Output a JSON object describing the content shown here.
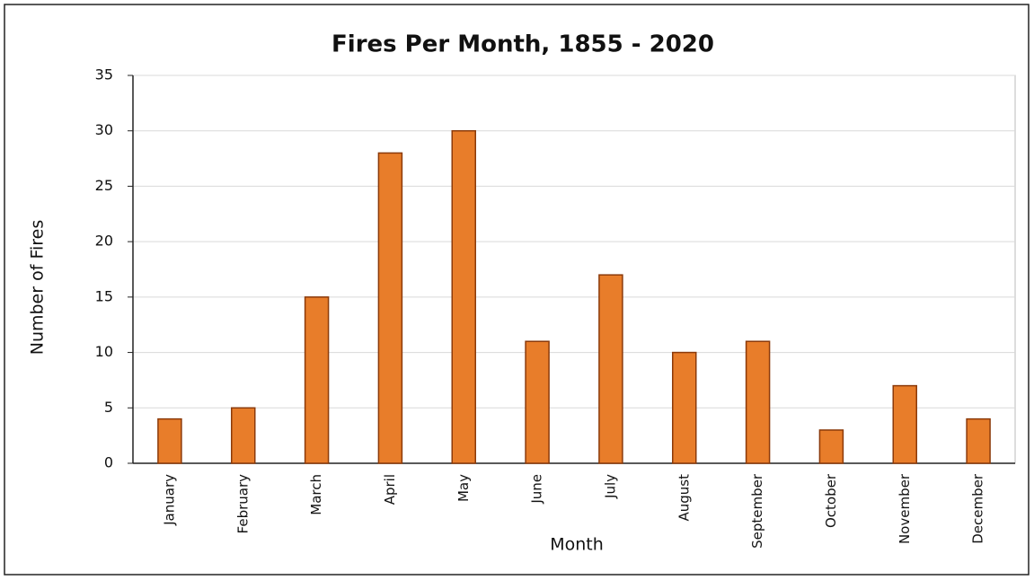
{
  "chart_data": {
    "type": "bar",
    "title": "Fires Per Month, 1855 - 2020",
    "x_label": "Month",
    "y_label": "Number of Fires",
    "categories": [
      "January",
      "February",
      "March",
      "April",
      "May",
      "June",
      "July",
      "August",
      "September",
      "October",
      "November",
      "December"
    ],
    "values": [
      4,
      5,
      15,
      28,
      30,
      11,
      17,
      10,
      11,
      3,
      7,
      4
    ],
    "color": "#e87d2a",
    "ylim": [
      0,
      35
    ],
    "yticks": [
      0,
      5,
      10,
      15,
      20,
      25,
      30,
      35
    ],
    "grid": true
  }
}
